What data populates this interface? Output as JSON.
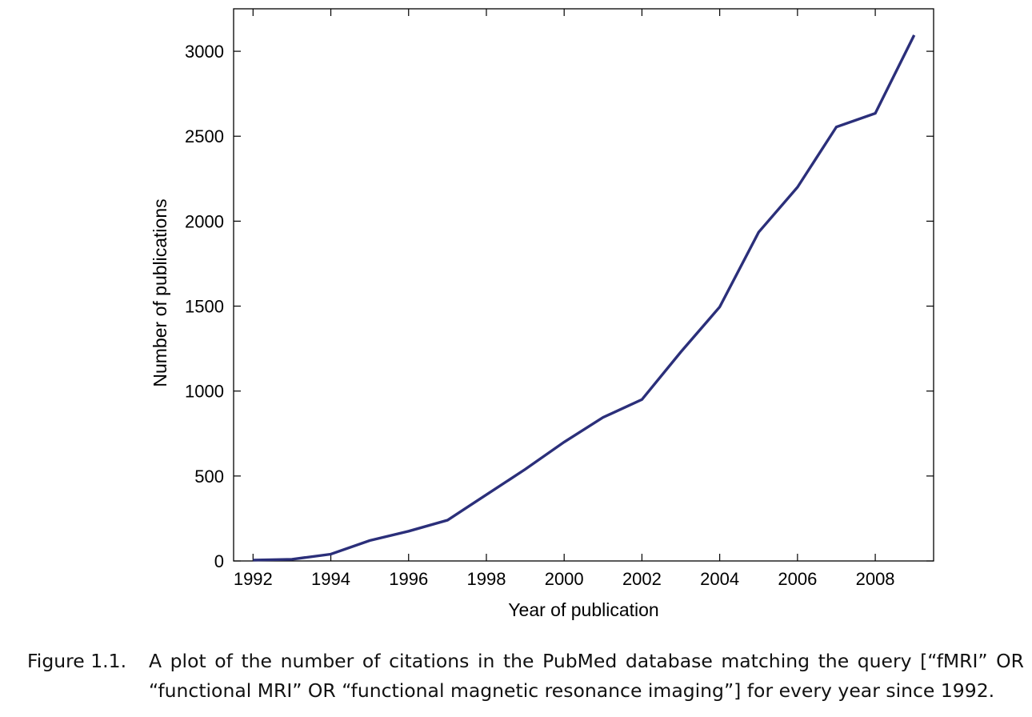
{
  "chart_data": {
    "type": "line",
    "xlabel": "Year of publication",
    "ylabel": "Number of publications",
    "xlim": [
      1991.5,
      2009.5
    ],
    "ylim": [
      0,
      3250
    ],
    "x_ticks": [
      1992,
      1994,
      1996,
      1998,
      2000,
      2002,
      2004,
      2006,
      2008
    ],
    "y_ticks": [
      0,
      500,
      1000,
      1500,
      2000,
      2500,
      3000
    ],
    "grid": false,
    "line_color": "#2b2f7a",
    "series": [
      {
        "x": [
          1992,
          1993,
          1994,
          1995,
          1996,
          1997,
          1998,
          1999,
          2000,
          2001,
          2002,
          2003,
          2004,
          2005,
          2006,
          2007,
          2008,
          2009
        ],
        "values": [
          5,
          10,
          40,
          120,
          175,
          240,
          390,
          540,
          700,
          845,
          950,
          1230,
          1495,
          1935,
          2200,
          2555,
          2635,
          3095
        ]
      }
    ]
  },
  "caption": {
    "label": "Figure 1.1.",
    "text": "A plot of the number of citations in the PubMed database matching the query [“fMRI” OR “functional MRI” OR “functional magnetic resonance imaging”] for every year since 1992."
  }
}
